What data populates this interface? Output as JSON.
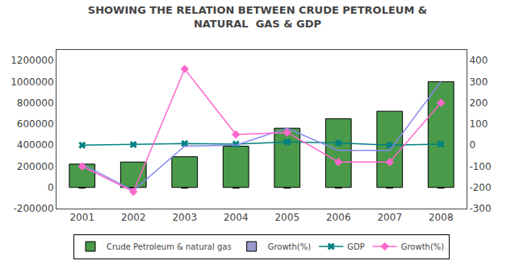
{
  "chart_data": {
    "type": "bar",
    "title": "SHOWING THE RELATION BETWEEN CRUDE PETROLEUM &\nNATURAL  GAS & GDP",
    "categories": [
      "2001",
      "2002",
      "2003",
      "2004",
      "2005",
      "2006",
      "2007",
      "2008"
    ],
    "series": [
      {
        "name": "Crude Petroleum & natural gas",
        "type": "bar",
        "color": "#4a9a4a",
        "values": [
          220000,
          240000,
          290000,
          390000,
          560000,
          650000,
          720000,
          1000000
        ]
      },
      {
        "name": "Growth(%)",
        "type": "bar",
        "color": "#9999cc",
        "values": [
          -8000,
          -8000,
          -8000,
          -8000,
          -8000,
          -8000,
          -8000,
          -8000
        ]
      },
      {
        "name": "GDP",
        "type": "line",
        "color": "#008080",
        "marker": "x",
        "values": [
          400000,
          405000,
          415000,
          410000,
          430000,
          420000,
          400000,
          410000
        ]
      },
      {
        "type": "line",
        "color": "#8888ee",
        "values": [
          220000,
          -30000,
          390000,
          400000,
          560000,
          350000,
          350000,
          1000000
        ]
      },
      {
        "name": "Growth(%)",
        "type": "line",
        "color": "#ff66cc",
        "marker": "diamond",
        "axis": "y2",
        "values": [
          -100,
          -220,
          360,
          50,
          60,
          -80,
          -80,
          200
        ]
      }
    ],
    "ylim": [
      -200000,
      1300000
    ],
    "yticks": [
      -200000,
      0,
      200000,
      400000,
      600000,
      800000,
      1000000,
      1200000
    ],
    "y2lim": [
      -300,
      450
    ],
    "y2ticks": [
      -300,
      -200,
      -100,
      0,
      100,
      200,
      300,
      400
    ],
    "grid": false,
    "legend": "bottom"
  }
}
